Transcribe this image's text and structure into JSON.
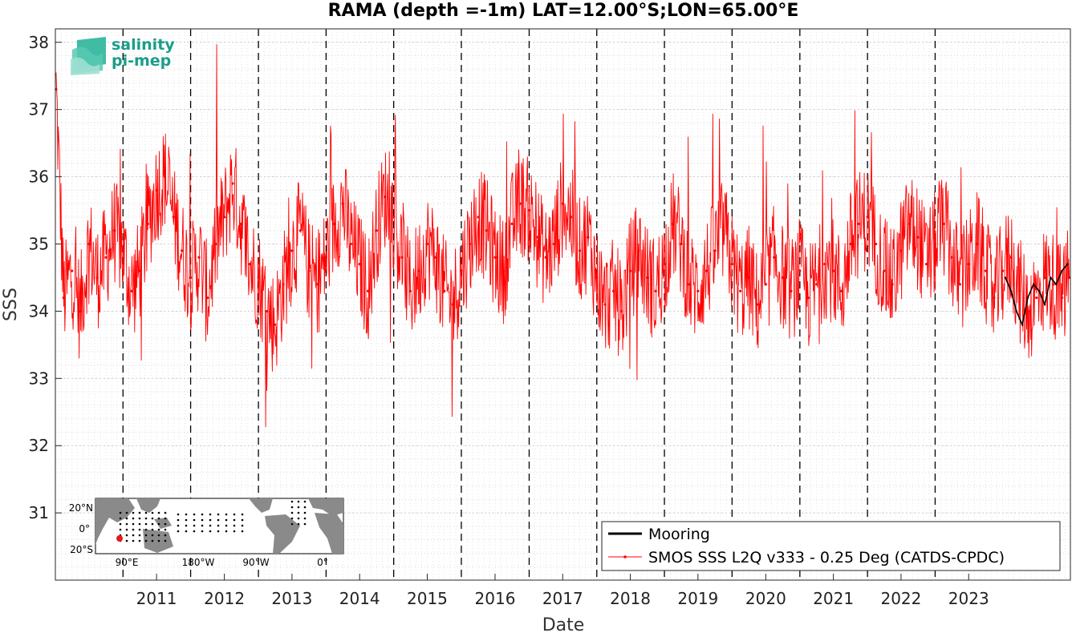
{
  "chart_data": {
    "type": "line",
    "title": "RAMA (depth =-1m) LAT=12.00°S;LON=65.00°E",
    "xlabel": "Date",
    "ylabel": "SSS",
    "xlim": [
      "2010-01-01",
      "2024-12-31"
    ],
    "ylim": [
      30.0,
      38.2
    ],
    "x_ticks": [
      "2011",
      "2012",
      "2013",
      "2014",
      "2015",
      "2016",
      "2017",
      "2018",
      "2019",
      "2020",
      "2021",
      "2022",
      "2023"
    ],
    "y_ticks": [
      "31",
      "32",
      "33",
      "34",
      "35",
      "36",
      "37",
      "38"
    ],
    "year_boundaries": [
      "2011-01-01",
      "2012-01-01",
      "2013-01-01",
      "2014-01-01",
      "2015-01-01",
      "2016-01-01",
      "2017-01-01",
      "2018-01-01",
      "2019-01-01",
      "2020-01-01",
      "2021-01-01",
      "2022-01-01",
      "2023-01-01"
    ],
    "grid": true,
    "legend_position": "bottom-right",
    "series": [
      {
        "name": "Mooring",
        "color": "#000000",
        "x": [
          "2024-01-15",
          "2024-02-15",
          "2024-03-15",
          "2024-04-15",
          "2024-05-15",
          "2024-06-15",
          "2024-07-15",
          "2024-08-15",
          "2024-09-15",
          "2024-10-15",
          "2024-11-15",
          "2024-12-15"
        ],
        "y": [
          34.5,
          34.3,
          34.0,
          33.8,
          34.2,
          34.4,
          34.3,
          34.1,
          34.5,
          34.4,
          34.6,
          34.7
        ]
      },
      {
        "name": "SMOS SSS L2Q v333 - 0.25 Deg (CATDS-CPDC)",
        "color": "#ff0000",
        "x": [
          "2010-01-05",
          "2010-02-15",
          "2010-04-01",
          "2010-05-15",
          "2010-07-01",
          "2010-08-15",
          "2010-10-01",
          "2010-11-15",
          "2011-01-01",
          "2011-02-15",
          "2011-04-01",
          "2011-05-15",
          "2011-07-01",
          "2011-08-15",
          "2011-10-01",
          "2011-11-15",
          "2012-01-01",
          "2012-02-15",
          "2012-04-01",
          "2012-05-15",
          "2012-07-01",
          "2012-08-15",
          "2012-10-01",
          "2012-11-15",
          "2013-01-01",
          "2013-02-15",
          "2013-04-01",
          "2013-05-15",
          "2013-07-01",
          "2013-08-15",
          "2013-10-01",
          "2013-11-15",
          "2014-01-01",
          "2014-02-15",
          "2014-04-01",
          "2014-05-15",
          "2014-07-01",
          "2014-08-15",
          "2014-10-01",
          "2014-11-15",
          "2015-01-01",
          "2015-02-15",
          "2015-04-01",
          "2015-05-15",
          "2015-07-01",
          "2015-08-15",
          "2015-10-01",
          "2015-11-15",
          "2016-01-01",
          "2016-02-15",
          "2016-04-01",
          "2016-05-15",
          "2016-07-01",
          "2016-08-15",
          "2016-10-01",
          "2016-11-15",
          "2017-01-01",
          "2017-02-15",
          "2017-04-01",
          "2017-05-15",
          "2017-07-01",
          "2017-08-15",
          "2017-10-01",
          "2017-11-15",
          "2018-01-01",
          "2018-02-15",
          "2018-04-01",
          "2018-05-15",
          "2018-07-01",
          "2018-08-15",
          "2018-10-01",
          "2018-11-15",
          "2019-01-01",
          "2019-02-15",
          "2019-04-01",
          "2019-05-15",
          "2019-07-01",
          "2019-08-15",
          "2019-10-01",
          "2019-11-15",
          "2020-01-01",
          "2020-02-15",
          "2020-04-01",
          "2020-05-15",
          "2020-07-01",
          "2020-08-15",
          "2020-10-01",
          "2020-11-15",
          "2021-01-01",
          "2021-02-15",
          "2021-04-01",
          "2021-05-15",
          "2021-07-01",
          "2021-08-15",
          "2021-10-01",
          "2021-11-15",
          "2022-01-01",
          "2022-02-15",
          "2022-04-01",
          "2022-05-15",
          "2022-07-01",
          "2022-08-15",
          "2022-10-01",
          "2022-11-15",
          "2023-01-01",
          "2023-02-15",
          "2023-04-01",
          "2023-05-15",
          "2023-07-01",
          "2023-08-15",
          "2023-10-01",
          "2023-11-15",
          "2024-01-01",
          "2024-02-15",
          "2024-04-01",
          "2024-05-15",
          "2024-07-01",
          "2024-08-15",
          "2024-10-01",
          "2024-11-15",
          "2024-12-25"
        ],
        "y": [
          37.3,
          34.2,
          34.6,
          34.0,
          35.0,
          34.5,
          34.8,
          35.2,
          34.9,
          34.3,
          34.6,
          35.3,
          35.8,
          36.0,
          35.4,
          34.9,
          34.5,
          34.8,
          34.2,
          35.0,
          35.4,
          35.9,
          35.3,
          34.7,
          34.5,
          34.0,
          33.8,
          34.4,
          34.9,
          35.2,
          34.6,
          34.4,
          34.8,
          35.3,
          35.6,
          35.0,
          34.7,
          34.3,
          35.2,
          35.7,
          35.4,
          34.8,
          34.3,
          34.6,
          35.0,
          34.8,
          34.3,
          34.1,
          34.6,
          35.0,
          35.4,
          35.2,
          34.8,
          34.6,
          35.3,
          35.6,
          35.5,
          35.1,
          34.8,
          35.0,
          35.6,
          35.4,
          34.9,
          35.1,
          34.5,
          34.1,
          34.3,
          34.0,
          34.6,
          34.9,
          34.5,
          34.3,
          34.7,
          35.3,
          35.0,
          34.4,
          34.3,
          34.6,
          34.9,
          35.2,
          34.7,
          34.3,
          34.5,
          34.1,
          34.4,
          34.8,
          34.5,
          34.3,
          34.6,
          34.2,
          34.4,
          34.7,
          34.6,
          34.3,
          35.0,
          35.3,
          35.4,
          35.0,
          34.6,
          34.4,
          34.9,
          35.3,
          35.1,
          34.7,
          35.0,
          35.3,
          34.8,
          34.4,
          34.7,
          35.0,
          34.6,
          34.2,
          34.6,
          34.8,
          34.3,
          34.0,
          34.2,
          34.5,
          34.4,
          34.2,
          34.5
        ]
      }
    ]
  },
  "inset_map": {
    "lat_labels": [
      "20°N",
      "0°",
      "20°S"
    ],
    "lon_labels": [
      "90°E",
      "180°W",
      "90°W",
      "0°"
    ]
  },
  "logo": {
    "line1": "salinity",
    "line2": "pi-mep"
  },
  "colors": {
    "smos": "#ff0000",
    "mooring": "#000000",
    "land": "#8a8a8a",
    "ocean": "#ffffff",
    "marker": "#e41a1c",
    "logo": "#1a9e8a"
  }
}
